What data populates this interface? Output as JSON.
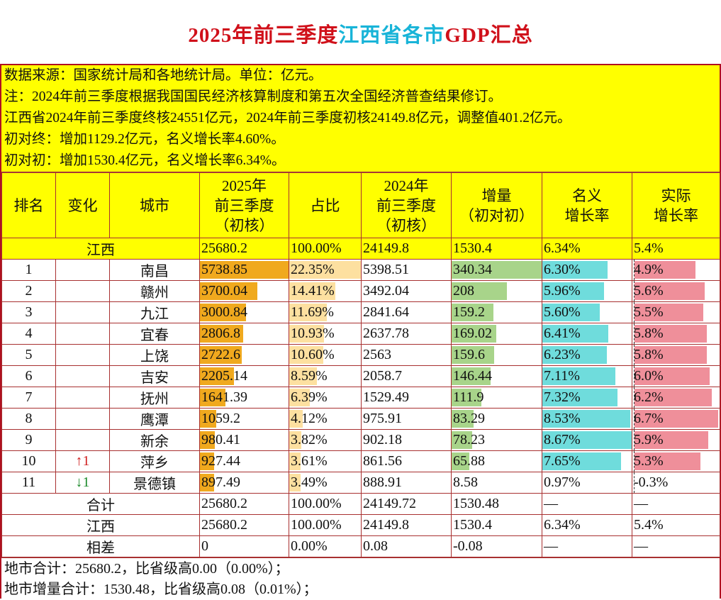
{
  "title": {
    "part1": "2025年前三季度",
    "part2": "江西省各市",
    "part3": "GDP汇总"
  },
  "notes": [
    "数据来源：国家统计局和各地统计局。单位：亿元。",
    "注：2024年前三季度根据我国国民经济核算制度和第五次全国经济普查结果修订。",
    "江西省2024年前三季度终核24551亿元，2024年前三季度初核24149.8亿元，调整值401.2亿元。",
    "初对终：增加1129.2亿元，名义增长率4.60%。",
    "初对初：增加1530.4亿元，名义增长率6.34%。"
  ],
  "headers": {
    "rank": "排名",
    "change": "变化",
    "city": "城市",
    "gdp2025": [
      "2025年",
      "前三季度",
      "（初核）"
    ],
    "share": "占比",
    "gdp2024": [
      "2024年",
      "前三季度",
      "（初核）"
    ],
    "increment": [
      "增量",
      "（初对初）"
    ],
    "nominal": [
      "名义",
      "增长率"
    ],
    "real": [
      "实际",
      "增长率"
    ]
  },
  "province_row": {
    "name": "江西",
    "gdp2025": "25680.2",
    "share": "100.00%",
    "gdp2024": "24149.8",
    "increment": "1530.4",
    "nominal": "6.34%",
    "real": "5.4%"
  },
  "colors": {
    "gdp_bar": "#f0a91e",
    "share_bar": "#fde0a0",
    "increment_bar": "#a8d48a",
    "nominal_bar": "#6fdcdc",
    "real_bar": "#ef8f9a",
    "up": "#d02020",
    "down": "#1a8a2a",
    "header_bg": "#ffff00"
  },
  "rows": [
    {
      "rank": "1",
      "change": "",
      "city": "南昌",
      "gdp2025": "5738.85",
      "share": "22.35%",
      "gdp2024": "5398.51",
      "increment": "340.34",
      "nominal": "6.30%",
      "real": "4.9%"
    },
    {
      "rank": "2",
      "change": "",
      "city": "赣州",
      "gdp2025": "3700.04",
      "share": "14.41%",
      "gdp2024": "3492.04",
      "increment": "208",
      "nominal": "5.96%",
      "real": "5.6%"
    },
    {
      "rank": "3",
      "change": "",
      "city": "九江",
      "gdp2025": "3000.84",
      "share": "11.69%",
      "gdp2024": "2841.64",
      "increment": "159.2",
      "nominal": "5.60%",
      "real": "5.5%"
    },
    {
      "rank": "4",
      "change": "",
      "city": "宜春",
      "gdp2025": "2806.8",
      "share": "10.93%",
      "gdp2024": "2637.78",
      "increment": "169.02",
      "nominal": "6.41%",
      "real": "5.8%"
    },
    {
      "rank": "5",
      "change": "",
      "city": "上饶",
      "gdp2025": "2722.6",
      "share": "10.60%",
      "gdp2024": "2563",
      "increment": "159.6",
      "nominal": "6.23%",
      "real": "5.8%"
    },
    {
      "rank": "6",
      "change": "",
      "city": "吉安",
      "gdp2025": "2205.14",
      "share": "8.59%",
      "gdp2024": "2058.7",
      "increment": "146.44",
      "nominal": "7.11%",
      "real": "6.0%"
    },
    {
      "rank": "7",
      "change": "",
      "city": "抚州",
      "gdp2025": "1641.39",
      "share": "6.39%",
      "gdp2024": "1529.49",
      "increment": "111.9",
      "nominal": "7.32%",
      "real": "6.2%"
    },
    {
      "rank": "8",
      "change": "",
      "city": "鹰潭",
      "gdp2025": "1059.2",
      "share": "4.12%",
      "gdp2024": "975.91",
      "increment": "83.29",
      "nominal": "8.53%",
      "real": "6.7%"
    },
    {
      "rank": "9",
      "change": "",
      "city": "新余",
      "gdp2025": "980.41",
      "share": "3.82%",
      "gdp2024": "902.18",
      "increment": "78.23",
      "nominal": "8.67%",
      "real": "5.9%"
    },
    {
      "rank": "10",
      "change": "↑1",
      "change_dir": "up",
      "city": "萍乡",
      "gdp2025": "927.44",
      "share": "3.61%",
      "gdp2024": "861.56",
      "increment": "65.88",
      "nominal": "7.65%",
      "real": "5.3%"
    },
    {
      "rank": "11",
      "change": "↓1",
      "change_dir": "down",
      "city": "景德镇",
      "gdp2025": "897.49",
      "share": "3.49%",
      "gdp2024": "888.91",
      "increment": "8.58",
      "nominal": "0.97%",
      "real": "-0.3%",
      "no_bars": true
    }
  ],
  "summary_rows": [
    {
      "label": "合计",
      "gdp2025": "25680.2",
      "share": "100.00%",
      "gdp2024": "24149.72",
      "increment": "1530.48",
      "nominal": "—",
      "real": "—"
    },
    {
      "label": "江西",
      "gdp2025": "25680.2",
      "share": "100.00%",
      "gdp2024": "24149.8",
      "increment": "1530.4",
      "nominal": "6.34%",
      "real": "5.4%"
    },
    {
      "label": "相差",
      "gdp2025": "0",
      "share": "0.00%",
      "gdp2024": "0.08",
      "increment": "-0.08",
      "nominal": "—",
      "real": "—"
    }
  ],
  "footer": [
    "地市合计：25680.2，比省级高0.00（0.00%）；",
    "地市增量合计：1530.48，比省级高0.08（0.01%）；"
  ]
}
